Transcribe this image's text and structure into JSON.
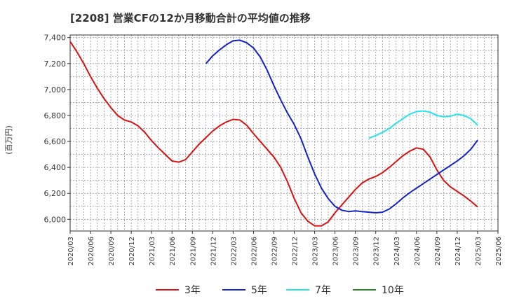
{
  "chart_data": {
    "type": "line",
    "title": "[2208]  営業CFの12か月移動合計の平均値の推移",
    "ylabel": "(百万円)",
    "xlabel": "",
    "ylim": [
      5910,
      7420
    ],
    "yticks": [
      6000,
      6200,
      6400,
      6600,
      6800,
      7000,
      7200,
      7400
    ],
    "ytick_labels": [
      "6,000",
      "6,200",
      "6,400",
      "6,600",
      "6,800",
      "7,000",
      "7,200",
      "7,400"
    ],
    "xlim": [
      "2020-03",
      "2025-06"
    ],
    "xtick_labels": [
      "2020/03",
      "2020/06",
      "2020/09",
      "2020/12",
      "2021/03",
      "2021/06",
      "2021/09",
      "2021/12",
      "2022/03",
      "2022/06",
      "2022/09",
      "2022/12",
      "2023/03",
      "2023/06",
      "2023/09",
      "2023/12",
      "2024/03",
      "2024/06",
      "2024/09",
      "2024/12",
      "2025/03",
      "2025/06"
    ],
    "grid": true,
    "legend_position": "bottom",
    "series": [
      {
        "name": "3年",
        "color": "#dd1111",
        "x": [
          "2020-03",
          "2020-04",
          "2020-05",
          "2020-06",
          "2020-07",
          "2020-08",
          "2020-09",
          "2020-10",
          "2020-11",
          "2020-12",
          "2021-01",
          "2021-02",
          "2021-03",
          "2021-04",
          "2021-05",
          "2021-06",
          "2021-07",
          "2021-08",
          "2021-09",
          "2021-10",
          "2021-11",
          "2021-12",
          "2022-01",
          "2022-02",
          "2022-03",
          "2022-04",
          "2022-05",
          "2022-06",
          "2022-07",
          "2022-08",
          "2022-09",
          "2022-10",
          "2022-11",
          "2022-12",
          "2023-01",
          "2023-02",
          "2023-03",
          "2023-04",
          "2023-05",
          "2023-06",
          "2023-07",
          "2023-08",
          "2023-09",
          "2023-10",
          "2023-11",
          "2023-12",
          "2024-01",
          "2024-02",
          "2024-03",
          "2024-04",
          "2024-05",
          "2024-06",
          "2024-07",
          "2024-08",
          "2024-09",
          "2024-10",
          "2024-11",
          "2024-12",
          "2025-01",
          "2025-02",
          "2025-03"
        ],
        "values": [
          7370,
          7290,
          7200,
          7100,
          7010,
          6930,
          6860,
          6800,
          6765,
          6750,
          6720,
          6670,
          6605,
          6550,
          6500,
          6450,
          6440,
          6460,
          6520,
          6580,
          6630,
          6680,
          6720,
          6750,
          6770,
          6765,
          6725,
          6660,
          6600,
          6540,
          6480,
          6400,
          6290,
          6160,
          6050,
          5985,
          5950,
          5950,
          5980,
          6050,
          6110,
          6170,
          6230,
          6280,
          6310,
          6330,
          6360,
          6400,
          6445,
          6490,
          6525,
          6550,
          6540,
          6480,
          6380,
          6300,
          6250,
          6215,
          6180,
          6140,
          6095
        ]
      },
      {
        "name": "5年",
        "color": "#1122cc",
        "x": [
          "2021-11",
          "2021-12",
          "2022-01",
          "2022-02",
          "2022-03",
          "2022-04",
          "2022-05",
          "2022-06",
          "2022-07",
          "2022-08",
          "2022-09",
          "2022-10",
          "2022-11",
          "2022-12",
          "2023-01",
          "2023-02",
          "2023-03",
          "2023-04",
          "2023-05",
          "2023-06",
          "2023-07",
          "2023-08",
          "2023-09",
          "2023-10",
          "2023-11",
          "2023-12",
          "2024-01",
          "2024-02",
          "2024-03",
          "2024-04",
          "2024-05",
          "2024-06",
          "2024-07",
          "2024-08",
          "2024-09",
          "2024-10",
          "2024-11",
          "2024-12",
          "2025-01",
          "2025-02",
          "2025-03"
        ],
        "values": [
          7200,
          7260,
          7305,
          7345,
          7375,
          7380,
          7360,
          7320,
          7250,
          7150,
          7030,
          6920,
          6820,
          6730,
          6620,
          6480,
          6350,
          6240,
          6160,
          6100,
          6070,
          6060,
          6065,
          6060,
          6055,
          6050,
          6055,
          6080,
          6120,
          6165,
          6205,
          6240,
          6275,
          6310,
          6345,
          6380,
          6415,
          6450,
          6490,
          6540,
          6610
        ]
      },
      {
        "name": "7年",
        "color": "#22e5ee",
        "x": [
          "2023-11",
          "2023-12",
          "2024-01",
          "2024-02",
          "2024-03",
          "2024-04",
          "2024-05",
          "2024-06",
          "2024-07",
          "2024-08",
          "2024-09",
          "2024-10",
          "2024-11",
          "2024-12",
          "2025-01",
          "2025-02",
          "2025-03"
        ],
        "values": [
          6625,
          6645,
          6670,
          6700,
          6740,
          6775,
          6810,
          6830,
          6835,
          6825,
          6800,
          6790,
          6795,
          6810,
          6800,
          6775,
          6725
        ]
      },
      {
        "name": "10年",
        "color": "#228822",
        "x": [],
        "values": []
      }
    ]
  }
}
